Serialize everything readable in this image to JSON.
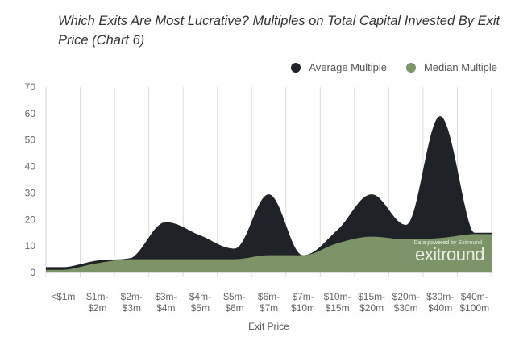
{
  "chart_data": {
    "type": "area",
    "title": "Which Exits Are Most Lucrative? Multiples on Total Capital Invested By Exit Price (Chart 6)",
    "xlabel": "Exit Price",
    "ylabel": "",
    "ylim": [
      0,
      70
    ],
    "yticks": [
      "0",
      "10",
      "20",
      "30",
      "40",
      "50",
      "60",
      "70"
    ],
    "categories": [
      [
        "<$1m"
      ],
      [
        "$1m-",
        "$2m"
      ],
      [
        "$2m-",
        "$3m"
      ],
      [
        "$3m-",
        "$4m"
      ],
      [
        "$4m-",
        "$5m"
      ],
      [
        "$5m-",
        "$6m"
      ],
      [
        "$6m-",
        "$7m"
      ],
      [
        "$7m-",
        "$10m"
      ],
      [
        "$10m-",
        "$15m"
      ],
      [
        "$15m-",
        "$20m"
      ],
      [
        "$20m-",
        "$30m"
      ],
      [
        "$30m-",
        "$40m"
      ],
      [
        "$40m-",
        "$100m"
      ]
    ],
    "series": [
      {
        "name": "Average Multiple",
        "color": "#1f2226",
        "values": [
          2,
          4.5,
          5.5,
          19,
          14,
          9,
          29.5,
          6.5,
          16,
          29.5,
          18,
          59,
          15
        ]
      },
      {
        "name": "Median Multiple",
        "color": "#7c9468",
        "values": [
          1,
          3.5,
          5,
          5,
          5,
          5,
          6.5,
          6.5,
          11,
          13.5,
          12.5,
          13,
          14.5
        ]
      }
    ],
    "grid": "vertical",
    "legend_position": "top-right",
    "watermark": {
      "small": "Data powered by Exitround",
      "big": "exitround"
    }
  }
}
